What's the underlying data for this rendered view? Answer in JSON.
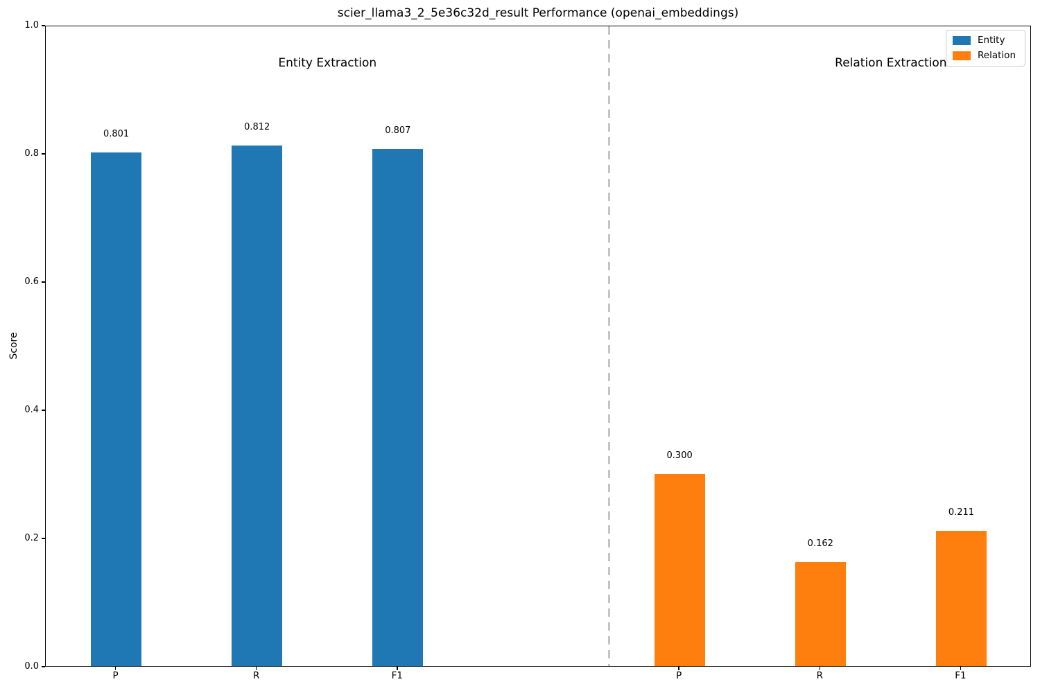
{
  "chart_data": {
    "type": "bar",
    "title": "scier_llama3_2_5e36c32d_result Performance (openai_embeddings)",
    "ylabel": "Score",
    "xlabel": "",
    "ylim": [
      0.0,
      1.0
    ],
    "yticks": [
      0.0,
      0.2,
      0.4,
      0.6,
      0.8,
      1.0
    ],
    "ytick_labels": [
      "0.0",
      "0.2",
      "0.4",
      "0.6",
      "0.8",
      "1.0"
    ],
    "grid": false,
    "legend_position": "upper right",
    "group_labels": [
      "Entity Extraction",
      "Relation Extraction"
    ],
    "divider": {
      "style": "dashed",
      "color": "#c4c4c4"
    },
    "categories": [
      "P",
      "R",
      "F1",
      "P",
      "R",
      "F1"
    ],
    "series": [
      {
        "name": "Entity",
        "color": "#1f77b4",
        "categories": [
          "P",
          "R",
          "F1"
        ],
        "slots": [
          0,
          1,
          2
        ],
        "values": [
          0.801,
          0.812,
          0.807
        ],
        "value_labels": [
          "0.801",
          "0.812",
          "0.807"
        ]
      },
      {
        "name": "Relation",
        "color": "#ff7f0e",
        "categories": [
          "P",
          "R",
          "F1"
        ],
        "slots": [
          4,
          5,
          6
        ],
        "values": [
          0.3,
          0.162,
          0.211
        ],
        "value_labels": [
          "0.300",
          "0.162",
          "0.211"
        ]
      }
    ]
  }
}
